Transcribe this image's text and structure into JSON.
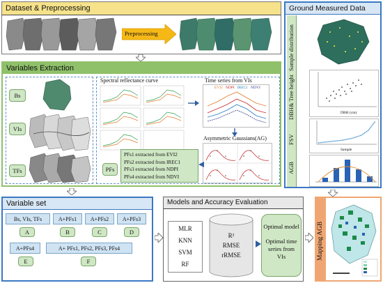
{
  "dataset": {
    "title": "Dataset & Preprocessing",
    "arrow_label": "Preprocessing"
  },
  "ground": {
    "title": "Ground Measured Data",
    "labels": {
      "sample_distribution": "Sample distribution",
      "dbh_tree_height": "DBH& Tree height",
      "fsv": "FSV",
      "agb": "AGB"
    },
    "scatter_xlabel": "DBH (cm)",
    "fsv_xlabel": "Sample"
  },
  "variables": {
    "title": "Variables Extraction",
    "rows": [
      "Bs",
      "VIs",
      "TFs"
    ],
    "spectral_title": "Spectral reflectance curve",
    "timeseries_title": "Time series from VIs",
    "ag_title": "Asymmetric Gaussians(AG)",
    "pfs_label": "PFs",
    "pf_lines": [
      "PFs1 extracted from EVI2",
      "PFs2 extracted from IREC1",
      "PFs3 extracted from NDPI",
      "PFs4 extracted from NDVI"
    ],
    "ts_legend": [
      "EVI2",
      "NDPI",
      "IREC1",
      "NDVI"
    ]
  },
  "varset": {
    "title": "Variable set",
    "items": [
      "Bs, VIs, TFs",
      "A+PFs1",
      "A+PFs2",
      "A+PFs3",
      "A+PFs4",
      "A+ PFs1, PFs2, PFs3, PFs4"
    ],
    "letters": [
      "A",
      "B",
      "C",
      "D",
      "E",
      "F"
    ]
  },
  "models": {
    "title": "Models and Accuracy Evaluation",
    "list": [
      "MLR",
      "KNN",
      "SVM",
      "RF"
    ],
    "metrics": [
      "R²",
      "RMSE",
      "rRMSE"
    ],
    "optimal_model": "Optimal model",
    "optimal_ts": "Optimal time series from VIs"
  },
  "mapping": {
    "label": "Mapping AGB"
  },
  "colors": {
    "title_bar": "#f5e28a",
    "green_panel": "#8fc06a",
    "box_green": "#cfe7c5",
    "box_blue": "#cfe3f3",
    "blue_panel": "#3a78c2",
    "orange_panel": "#f0a673"
  }
}
